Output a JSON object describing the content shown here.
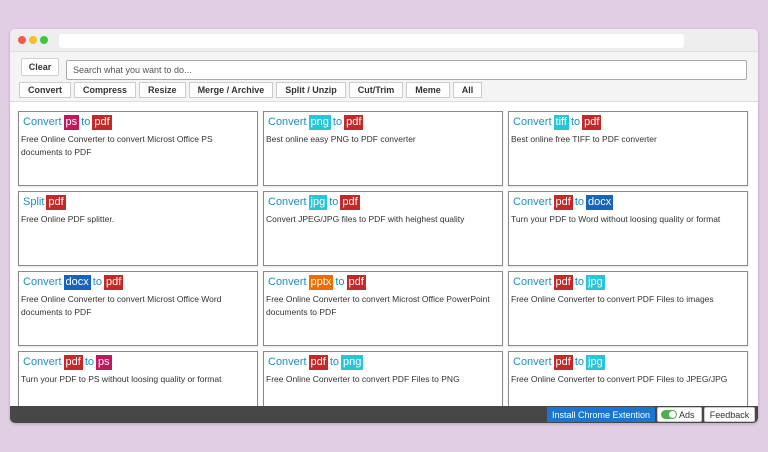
{
  "search": {
    "clear_label": "Clear",
    "placeholder": "Search what you want to do..."
  },
  "tabs": [
    "Convert",
    "Compress",
    "Resize",
    "Merge / Archive",
    "Split / Unzip",
    "Cut/Trim",
    "Meme",
    "All"
  ],
  "cards": [
    {
      "title": [
        {
          "t": "Convert"
        },
        {
          "t": "ps",
          "bg": "#c2185b"
        },
        {
          "t": "to"
        },
        {
          "t": "pdf",
          "bg": "#c62828"
        }
      ],
      "desc": "Free Online Converter to convert Microst Office PS documents to PDF"
    },
    {
      "title": [
        {
          "t": "Convert"
        },
        {
          "t": "png",
          "bg": "#26c6da"
        },
        {
          "t": "to"
        },
        {
          "t": "pdf",
          "bg": "#c62828"
        }
      ],
      "desc": "Best online easy PNG to PDF converter"
    },
    {
      "title": [
        {
          "t": "Convert"
        },
        {
          "t": "tiff",
          "bg": "#26c6da"
        },
        {
          "t": "to"
        },
        {
          "t": "pdf",
          "bg": "#c62828"
        }
      ],
      "desc": "Best online free TIFF to PDF converter"
    },
    {
      "title": [
        {
          "t": "Split"
        },
        {
          "t": "pdf",
          "bg": "#c62828"
        }
      ],
      "desc": "Free Online PDF splitter."
    },
    {
      "title": [
        {
          "t": "Convert"
        },
        {
          "t": "jpg",
          "bg": "#26c6da"
        },
        {
          "t": "to"
        },
        {
          "t": "pdf",
          "bg": "#c62828"
        }
      ],
      "desc": "Convert JPEG/JPG files to PDF with heighest quality"
    },
    {
      "title": [
        {
          "t": "Convert"
        },
        {
          "t": "pdf",
          "bg": "#c62828"
        },
        {
          "t": "to"
        },
        {
          "t": "docx",
          "bg": "#1565c0"
        }
      ],
      "desc": "Turn your PDF to Word without loosing quality or format"
    },
    {
      "title": [
        {
          "t": "Convert"
        },
        {
          "t": "docx",
          "bg": "#1565c0"
        },
        {
          "t": "to"
        },
        {
          "t": "pdf",
          "bg": "#c62828"
        }
      ],
      "desc": "Free Online Converter to convert Microst Office Word documents to PDF"
    },
    {
      "title": [
        {
          "t": "Convert"
        },
        {
          "t": "pptx",
          "bg": "#ef6c00"
        },
        {
          "t": "to"
        },
        {
          "t": "pdf",
          "bg": "#c62828"
        }
      ],
      "desc": "Free Online Converter to convert Microst Office PowerPoint documents to PDF"
    },
    {
      "title": [
        {
          "t": "Convert"
        },
        {
          "t": "pdf",
          "bg": "#c62828"
        },
        {
          "t": "to"
        },
        {
          "t": "jpg",
          "bg": "#26c6da"
        }
      ],
      "desc": "Free Online Converter to convert PDF Files to images"
    },
    {
      "title": [
        {
          "t": "Convert"
        },
        {
          "t": "pdf",
          "bg": "#c62828"
        },
        {
          "t": "to"
        },
        {
          "t": "ps",
          "bg": "#c2185b"
        }
      ],
      "desc": "Turn your PDF to PS without loosing quality or format"
    },
    {
      "title": [
        {
          "t": "Convert"
        },
        {
          "t": "pdf",
          "bg": "#c62828"
        },
        {
          "t": "to"
        },
        {
          "t": "png",
          "bg": "#26c6da"
        }
      ],
      "desc": "Free Online Converter to convert PDF Files to PNG"
    },
    {
      "title": [
        {
          "t": "Convert"
        },
        {
          "t": "pdf",
          "bg": "#c62828"
        },
        {
          "t": "to"
        },
        {
          "t": "jpg",
          "bg": "#26c6da"
        }
      ],
      "desc": "Free Online Converter to convert PDF Files to JPEG/JPG"
    }
  ],
  "footer": {
    "chrome_label": "Install Chrome Extention",
    "ads_label": "Ads",
    "ads_enabled": true,
    "feedback_label": "Feedback"
  },
  "colors": {
    "accent": "#1a8fc9",
    "chrome_button": "#1976d2",
    "statusbar": "#474747",
    "background": "#e1cde4"
  }
}
